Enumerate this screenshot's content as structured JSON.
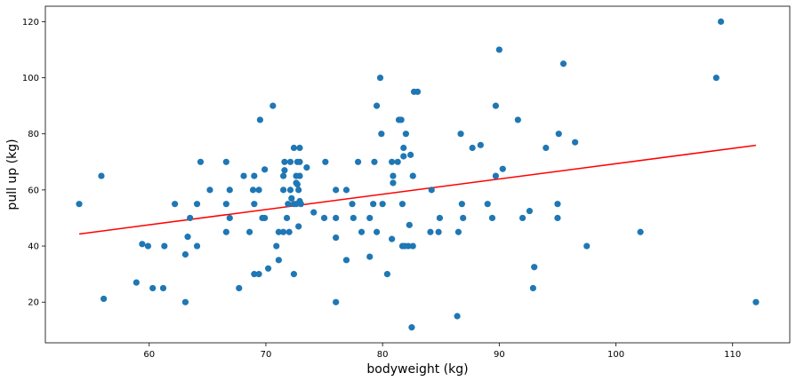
{
  "chart_data": {
    "type": "scatter",
    "title": "",
    "xlabel": "bodyweight (kg)",
    "ylabel": "pull up (kg)",
    "xlim": [
      51.1,
      114.9
    ],
    "ylim": [
      5.5,
      125.5
    ],
    "xticks": [
      60,
      70,
      80,
      90,
      100,
      110
    ],
    "yticks": [
      20,
      40,
      60,
      80,
      100,
      120
    ],
    "grid": false,
    "point_color": "#1f77b4",
    "line_color": "#ff0000",
    "points": [
      [
        54.0,
        55
      ],
      [
        55.9,
        65
      ],
      [
        56.1,
        21.2
      ],
      [
        58.9,
        27
      ],
      [
        59.4,
        40.7
      ],
      [
        59.9,
        40
      ],
      [
        60.3,
        25
      ],
      [
        61.2,
        25
      ],
      [
        61.3,
        40
      ],
      [
        62.2,
        55
      ],
      [
        63.1,
        20
      ],
      [
        63.1,
        37
      ],
      [
        63.3,
        43.3
      ],
      [
        63.5,
        50
      ],
      [
        64.1,
        55
      ],
      [
        64.1,
        40
      ],
      [
        64.4,
        70
      ],
      [
        65.2,
        60
      ],
      [
        66.6,
        70
      ],
      [
        66.6,
        45
      ],
      [
        66.6,
        55
      ],
      [
        66.9,
        60
      ],
      [
        66.9,
        50
      ],
      [
        67.7,
        25
      ],
      [
        68.1,
        65
      ],
      [
        68.6,
        45
      ],
      [
        68.9,
        60
      ],
      [
        69.0,
        55
      ],
      [
        69.0,
        65
      ],
      [
        69.0,
        30
      ],
      [
        69.4,
        60
      ],
      [
        69.4,
        30
      ],
      [
        69.5,
        85
      ],
      [
        69.7,
        50
      ],
      [
        69.9,
        50
      ],
      [
        69.9,
        67.3
      ],
      [
        70.2,
        32
      ],
      [
        70.6,
        90
      ],
      [
        70.9,
        40
      ],
      [
        71.1,
        45
      ],
      [
        71.1,
        35
      ],
      [
        71.5,
        45
      ],
      [
        71.5,
        65
      ],
      [
        71.5,
        60
      ],
      [
        71.6,
        70
      ],
      [
        71.6,
        67
      ],
      [
        71.8,
        50
      ],
      [
        71.9,
        55
      ],
      [
        72.0,
        45
      ],
      [
        72.1,
        60
      ],
      [
        72.1,
        70
      ],
      [
        72.2,
        57
      ],
      [
        72.4,
        55
      ],
      [
        72.4,
        30
      ],
      [
        72.4,
        75
      ],
      [
        72.6,
        65
      ],
      [
        72.6,
        62.5
      ],
      [
        72.6,
        55
      ],
      [
        72.7,
        70
      ],
      [
        72.7,
        62
      ],
      [
        72.8,
        60
      ],
      [
        72.8,
        47
      ],
      [
        72.9,
        65
      ],
      [
        72.9,
        75
      ],
      [
        72.9,
        70
      ],
      [
        72.9,
        56
      ],
      [
        73.0,
        55
      ],
      [
        73.5,
        68
      ],
      [
        74.1,
        52
      ],
      [
        75.0,
        50
      ],
      [
        75.1,
        70
      ],
      [
        76.0,
        50
      ],
      [
        76.0,
        43
      ],
      [
        76.0,
        60
      ],
      [
        76.0,
        20
      ],
      [
        76.9,
        60
      ],
      [
        76.9,
        35
      ],
      [
        77.4,
        55
      ],
      [
        77.5,
        50
      ],
      [
        77.9,
        70
      ],
      [
        78.2,
        45
      ],
      [
        78.9,
        50
      ],
      [
        78.9,
        36.2
      ],
      [
        79.2,
        55
      ],
      [
        79.3,
        70
      ],
      [
        79.5,
        45
      ],
      [
        79.5,
        90
      ],
      [
        79.8,
        100
      ],
      [
        79.9,
        80
      ],
      [
        80.0,
        55
      ],
      [
        80.4,
        30
      ],
      [
        80.8,
        42.5
      ],
      [
        80.8,
        70
      ],
      [
        80.9,
        65
      ],
      [
        80.9,
        62.5
      ],
      [
        81.3,
        70
      ],
      [
        81.4,
        85
      ],
      [
        81.6,
        85
      ],
      [
        81.7,
        40
      ],
      [
        81.7,
        55
      ],
      [
        81.8,
        72
      ],
      [
        81.8,
        75
      ],
      [
        81.9,
        40
      ],
      [
        82.0,
        80
      ],
      [
        82.2,
        40
      ],
      [
        82.3,
        47.5
      ],
      [
        82.4,
        72.5
      ],
      [
        82.5,
        11
      ],
      [
        82.6,
        40
      ],
      [
        82.6,
        65
      ],
      [
        82.7,
        95
      ],
      [
        83.0,
        95
      ],
      [
        84.1,
        45
      ],
      [
        84.2,
        60
      ],
      [
        84.8,
        45
      ],
      [
        84.9,
        50
      ],
      [
        86.4,
        15
      ],
      [
        86.5,
        45
      ],
      [
        86.7,
        80
      ],
      [
        86.8,
        55
      ],
      [
        86.9,
        50
      ],
      [
        87.7,
        75
      ],
      [
        88.4,
        76
      ],
      [
        89.0,
        55
      ],
      [
        89.4,
        50
      ],
      [
        89.7,
        65
      ],
      [
        89.7,
        90
      ],
      [
        90.0,
        110
      ],
      [
        90.3,
        67.5
      ],
      [
        91.6,
        85
      ],
      [
        92.0,
        50
      ],
      [
        92.6,
        52.5
      ],
      [
        92.9,
        25
      ],
      [
        93.0,
        32.5
      ],
      [
        94.0,
        75
      ],
      [
        95.0,
        55
      ],
      [
        95.0,
        50
      ],
      [
        95.1,
        80
      ],
      [
        95.5,
        105
      ],
      [
        96.5,
        77
      ],
      [
        97.5,
        40
      ],
      [
        102.1,
        45
      ],
      [
        108.6,
        100
      ],
      [
        109.0,
        120
      ],
      [
        112.0,
        20
      ]
    ],
    "fit_line": {
      "x": [
        54.0,
        112.0
      ],
      "y": [
        44.3,
        75.9
      ]
    }
  }
}
